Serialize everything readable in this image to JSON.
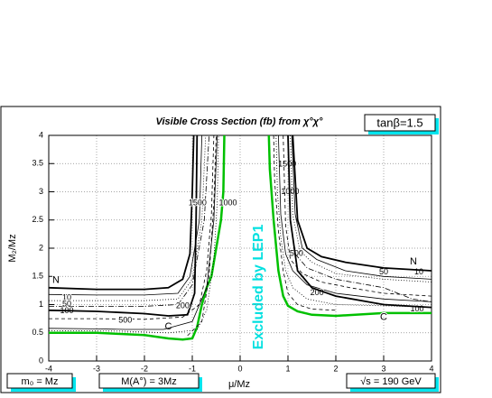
{
  "chart_data": {
    "type": "line",
    "title": "Visible Cross Section (fb) from χ°χ°",
    "parameter_label": "tanβ=1.5",
    "x_label": "μ/Mz",
    "y_label": "M₂/Mz",
    "footer_labels": [
      "m₀ = Mz",
      "M(A°) = 3Mz",
      "√s = 190 GeV"
    ],
    "annotation": "Excluded by LEP1",
    "xlim": [
      -4,
      4
    ],
    "ylim": [
      0,
      4
    ],
    "xticks": [
      -4,
      -3,
      -2,
      -1,
      0,
      1,
      2,
      3,
      4
    ],
    "yticks": [
      0,
      0.5,
      1,
      1.5,
      2,
      2.5,
      3,
      3.5,
      4
    ],
    "grid": true,
    "series": [
      {
        "color": "#00c000",
        "style": "excluded",
        "x": [
          -4,
          -3,
          -2.5,
          -2,
          -1.5,
          -1.2,
          -1,
          -0.9,
          -0.8,
          -0.7,
          -0.6,
          -0.5,
          -0.4,
          -0.35,
          -0.33
        ],
        "values": [
          0.5,
          0.5,
          0.48,
          0.46,
          0.4,
          0.38,
          0.4,
          0.6,
          1.0,
          1.3,
          1.5,
          2,
          2.5,
          3,
          4
        ]
      },
      {
        "name": "N",
        "color": "#000000",
        "style": "thick",
        "x": [
          -4,
          -3,
          -2,
          -1.5,
          -1.2,
          -1.05,
          -1,
          -0.97
        ],
        "values": [
          1.3,
          1.27,
          1.27,
          1.3,
          1.45,
          1.9,
          3,
          4
        ]
      },
      {
        "name": "10",
        "color": "#000000",
        "style": "thin",
        "x": [
          -4,
          -3,
          -2,
          -1.3,
          -1.05,
          -0.85,
          -0.8
        ],
        "values": [
          1.18,
          1.17,
          1.17,
          1.2,
          1.5,
          2.5,
          4
        ]
      },
      {
        "name": "50",
        "color": "#000000",
        "style": "dotted",
        "x": [
          -4,
          -3,
          -2,
          -1.3,
          -1.0,
          -0.8,
          -0.72
        ],
        "values": [
          1.07,
          1.07,
          1.07,
          1.1,
          1.45,
          2.5,
          4
        ]
      },
      {
        "name": "100",
        "color": "#000000",
        "style": "dashdot",
        "x": [
          -4,
          -3,
          -2,
          -1.3,
          -1.0,
          -0.75,
          -0.65
        ],
        "values": [
          0.97,
          0.97,
          0.97,
          1.0,
          1.35,
          2.5,
          4
        ]
      },
      {
        "name": "C",
        "color": "#000000",
        "style": "thick",
        "x": [
          -4,
          -3,
          -2,
          -1.5,
          -1.1,
          -0.95,
          -0.92,
          -0.9
        ],
        "values": [
          0.9,
          0.88,
          0.84,
          0.8,
          0.82,
          1.2,
          2.5,
          4
        ]
      },
      {
        "name": "200",
        "color": "#000000",
        "style": "dashed",
        "x": [
          -4,
          -3,
          -2,
          -1.2,
          -0.85,
          -0.7,
          -0.6,
          -0.55
        ],
        "values": [
          0.75,
          0.75,
          0.74,
          0.78,
          1.0,
          1.6,
          2.6,
          4
        ]
      },
      {
        "name": "500",
        "color": "#000000",
        "style": "thin",
        "x": [
          -4,
          -3,
          -2.4,
          -1.6,
          -1.0,
          -0.7,
          -0.55,
          -0.48
        ],
        "values": [
          0.58,
          0.57,
          0.56,
          0.56,
          0.7,
          1.3,
          2.5,
          4
        ]
      },
      {
        "name": "1000",
        "color": "#000000",
        "style": "dotted",
        "x": [
          -4,
          -2.5,
          -1.5,
          -0.9,
          -0.7,
          -0.55,
          -0.48,
          -0.45
        ],
        "values": [
          0.54,
          0.53,
          0.5,
          0.55,
          0.9,
          1.8,
          2.8,
          4
        ]
      },
      {
        "name": "1500",
        "color": "#000000",
        "style": "dashed",
        "x": [
          -1.1,
          -0.8,
          -0.65,
          -0.55,
          -0.5
        ],
        "values": [
          0.45,
          0.7,
          1.5,
          2.8,
          4
        ]
      },
      {
        "color": "#00c000",
        "style": "excluded",
        "x": [
          0.6,
          0.62,
          0.7,
          0.8,
          0.9,
          1.0,
          1.2,
          1.5,
          2,
          3,
          4
        ],
        "values": [
          4,
          3.4,
          2.5,
          1.6,
          1.15,
          0.98,
          0.88,
          0.82,
          0.8,
          0.85,
          0.85
        ]
      },
      {
        "name": "1500",
        "color": "#000000",
        "style": "dashed",
        "x": [
          0.7,
          0.72,
          0.8,
          0.9,
          1.0,
          1.2,
          1.5,
          2
        ],
        "values": [
          4,
          3.2,
          2.3,
          1.6,
          1.2,
          1.0,
          0.92,
          0.9
        ]
      },
      {
        "name": "1000",
        "color": "#000000",
        "style": "dotted",
        "x": [
          0.75,
          0.78,
          0.85,
          0.95,
          1.1,
          1.4,
          2,
          3,
          4
        ],
        "values": [
          4,
          3.0,
          2.2,
          1.6,
          1.3,
          1.1,
          1.0,
          0.98,
          0.95
        ]
      },
      {
        "name": "500",
        "color": "#000000",
        "style": "thin",
        "x": [
          0.8,
          0.85,
          0.95,
          1.1,
          1.4,
          2,
          3,
          4
        ],
        "values": [
          4,
          2.6,
          1.9,
          1.6,
          1.35,
          1.2,
          1.1,
          1.05
        ]
      },
      {
        "name": "200",
        "color": "#000000",
        "style": "dashed",
        "x": [
          0.9,
          0.95,
          1.05,
          1.3,
          1.7,
          2.3,
          3,
          4
        ],
        "values": [
          4,
          2.4,
          1.8,
          1.55,
          1.4,
          1.3,
          1.2,
          1.15
        ]
      },
      {
        "name": "100",
        "color": "#000000",
        "style": "dashdot",
        "x": [
          1.0,
          1.05,
          1.15,
          1.4,
          2,
          3,
          3.6,
          4
        ],
        "values": [
          4,
          2.5,
          1.9,
          1.65,
          1.45,
          1.3,
          1.1,
          1.05
        ]
      },
      {
        "name": "50",
        "color": "#000000",
        "style": "dotted",
        "x": [
          1.05,
          1.1,
          1.25,
          1.5,
          2,
          3,
          4
        ],
        "values": [
          4,
          2.6,
          1.95,
          1.75,
          1.55,
          1.45,
          1.4
        ]
      },
      {
        "name": "10",
        "color": "#000000",
        "style": "thin",
        "x": [
          1.08,
          1.15,
          1.3,
          1.6,
          2.2,
          3,
          4
        ],
        "values": [
          4,
          2.6,
          2.0,
          1.8,
          1.6,
          1.5,
          1.45
        ]
      },
      {
        "name": "N",
        "color": "#000000",
        "style": "thick",
        "x": [
          1.1,
          1.2,
          1.4,
          1.7,
          2.2,
          3,
          4
        ],
        "values": [
          4,
          2.5,
          2.0,
          1.85,
          1.75,
          1.65,
          1.6
        ]
      },
      {
        "name": "C",
        "color": "#000000",
        "style": "thick",
        "x": [
          1.0,
          1.05,
          1.2,
          1.5,
          2,
          3,
          4
        ],
        "values": [
          4,
          2.5,
          1.6,
          1.3,
          1.15,
          1.0,
          0.95
        ]
      }
    ]
  }
}
